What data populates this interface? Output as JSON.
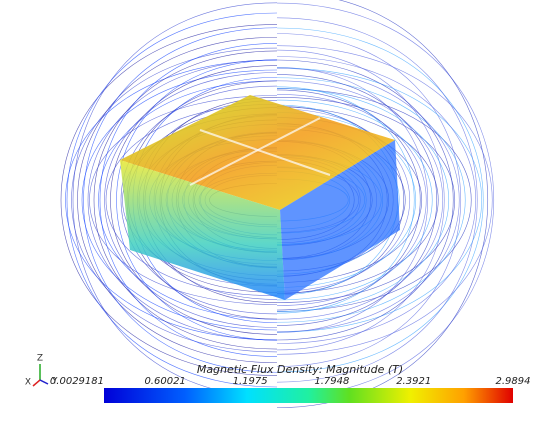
{
  "colorbar": {
    "title": "Magnetic Flux Density: Magnitude (T)",
    "ticks": [
      0.0029181,
      0.60021,
      1.1975,
      1.7948,
      2.3921,
      2.9894
    ]
  },
  "axes": {
    "labels": [
      "Z",
      "X",
      "Y"
    ]
  }
}
